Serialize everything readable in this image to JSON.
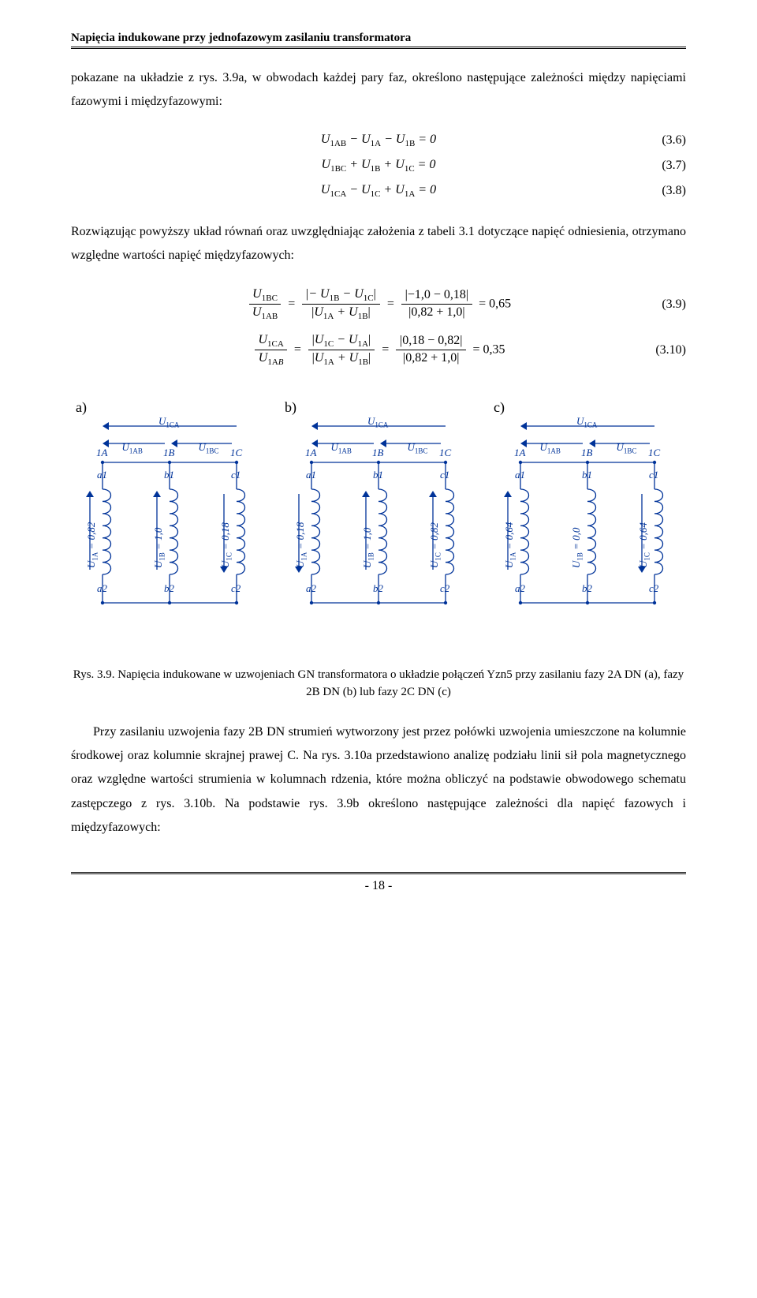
{
  "header": {
    "title": "Napięcia indukowane przy jednofazowym zasilaniu transformatora"
  },
  "para1": "pokazane na układzie z rys. 3.9a, w obwodach każdej pary faz, określono następujące zależności między napięciami fazowymi i międzyfazowymi:",
  "eq_simple": [
    {
      "lhs": "U",
      "s1": "1AB",
      "op1": "−",
      "t2": "U",
      "s2": "1A",
      "op2": "−",
      "t3": "U",
      "s3": "1B",
      "rhs": "= 0",
      "num": "(3.6)"
    },
    {
      "lhs": "U",
      "s1": "1BC",
      "op1": "+",
      "t2": "U",
      "s2": "1B",
      "op2": "+",
      "t3": "U",
      "s3": "1C",
      "rhs": "= 0",
      "num": "(3.7)"
    },
    {
      "lhs": "U",
      "s1": "1CA",
      "op1": "−",
      "t2": "U",
      "s2": "1C",
      "op2": "+",
      "t3": "U",
      "s3": "1A",
      "rhs": "= 0",
      "num": "(3.8)"
    }
  ],
  "para2": "Rozwiązując powyższy układ równań oraz uwzględniając założenia z tabeli 3.1 dotyczące napięć odniesienia, otrzymano względne wartości napięć międzyfazowych:",
  "eq_frac": [
    {
      "left_num": "U<sub>1BC</sub>",
      "left_den": "U<sub>1AB</sub>",
      "mid_num": "− U<sub>1B</sub> − U<sub>1C</sub>",
      "mid_den": "U<sub>1A</sub> + U<sub>1B</sub>",
      "right_num": "−1,0 − 0,18",
      "right_den": "0,82 + 1,0",
      "result": "= 0,65",
      "num": "(3.9)"
    },
    {
      "left_num": "U<sub>1CA</sub>",
      "left_den": "U<sub>1A<i>B</i></sub>",
      "mid_num": "U<sub>1C</sub> − U<sub>1A</sub>",
      "mid_den": "U<sub>1A</sub> + U<sub>1B</sub>",
      "right_num": "0,18 − 0,82",
      "right_den": "0,82 + 1,0",
      "result": "= 0,35",
      "num": "(3.10)"
    }
  ],
  "figure": {
    "style": {
      "stroke": "#003399",
      "stroke_width": 1.3,
      "text_color": "#003399",
      "arrow_fill": "#003399"
    },
    "top_nodes": [
      "1A",
      "1B",
      "1C"
    ],
    "mid_nodes_top": [
      "a1",
      "b1",
      "c1"
    ],
    "mid_nodes_bot": [
      "a2",
      "b2",
      "c2"
    ],
    "top_arrows": {
      "U1CA": "U<sub>1CA</sub>",
      "U1AB": "U<sub>1AB</sub>",
      "U1BC": "U<sub>1BC</sub>"
    },
    "panels": [
      {
        "label": "a)",
        "values": [
          "U<sub>1A</sub> = 0,82",
          "U<sub>1B</sub> = 1,0",
          "U<sub>1C</sub> = 0,18"
        ],
        "arrows": [
          "up",
          "up",
          "down"
        ]
      },
      {
        "label": "b)",
        "values": [
          "U<sub>1A</sub> = 0,18",
          "U<sub>1B</sub> = 1,0",
          "U<sub>1C</sub> = 0,82"
        ],
        "arrows": [
          "down",
          "up",
          "up"
        ]
      },
      {
        "label": "c)",
        "values": [
          "U<sub>1A</sub> = 0,64",
          "U<sub>1B</sub> = 0,0",
          "U<sub>1C</sub> = 0,64"
        ],
        "arrows": [
          "up",
          "none",
          "down"
        ]
      }
    ]
  },
  "fig_caption": "Rys. 3.9. Napięcia indukowane w uzwojeniach GN transformatora o układzie połączeń Yzn5 przy zasilaniu fazy 2A DN (a), fazy 2B DN (b) lub fazy 2C DN (c)",
  "para3": "Przy zasilaniu uzwojenia fazy 2B DN strumień wytworzony jest przez połówki uzwojenia umieszczone na kolumnie środkowej oraz kolumnie skrajnej prawej C. Na rys. 3.10a przedstawiono analizę podziału linii sił pola magnetycznego oraz względne wartości strumienia w kolumnach rdzenia, które można obliczyć na podstawie obwodowego schematu zastępczego z rys. 3.10b. Na podstawie rys. 3.9b określono następujące zależności dla napięć fazowych i międzyfazowych:",
  "footer": {
    "page": "- 18 -"
  }
}
